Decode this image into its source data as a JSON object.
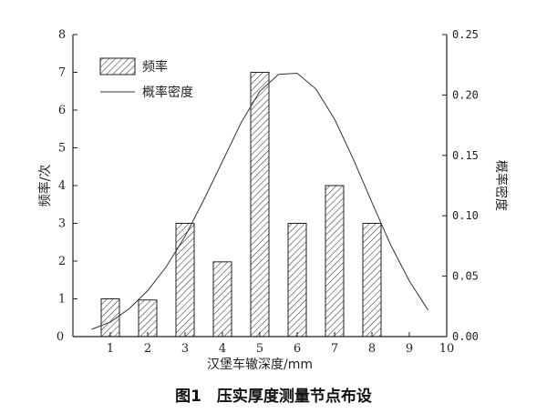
{
  "chart_data": {
    "type": "bar",
    "caption": "图1　压实厚度测量节点布设",
    "xlabel": "汉堡车辙深度/mm",
    "ylabel": "频率/次",
    "y2label": "概率密度",
    "xlim": [
      0,
      10
    ],
    "ylim": [
      0,
      8
    ],
    "y2lim": [
      0,
      0.25
    ],
    "x_ticks": [
      "0",
      "1",
      "2",
      "3",
      "4",
      "5",
      "6",
      "7",
      "8",
      "9",
      "10"
    ],
    "y_ticks": [
      "0",
      "1",
      "2",
      "3",
      "4",
      "5",
      "6",
      "7",
      "8"
    ],
    "y2_ticks": [
      "0.00",
      "0.05",
      "0.10",
      "0.15",
      "0.20",
      "0.25"
    ],
    "legend_position": "top-left",
    "series": [
      {
        "name": "频率",
        "type": "bar",
        "x": [
          1,
          2,
          3,
          4,
          5,
          6,
          7,
          8
        ],
        "values": [
          1,
          0.97,
          3,
          1.98,
          7,
          3,
          4,
          3
        ]
      },
      {
        "name": "概率密度",
        "type": "line",
        "axis": "right",
        "x": [
          0.5,
          1.0,
          1.5,
          2.0,
          2.5,
          3.0,
          3.5,
          4.0,
          4.5,
          5.0,
          5.5,
          6.0,
          6.5,
          7.0,
          7.5,
          8.0,
          8.5,
          9.0,
          9.5
        ],
        "values": [
          0.006,
          0.012,
          0.023,
          0.038,
          0.058,
          0.083,
          0.113,
          0.145,
          0.177,
          0.203,
          0.217,
          0.218,
          0.205,
          0.18,
          0.147,
          0.111,
          0.076,
          0.046,
          0.022
        ]
      }
    ]
  }
}
